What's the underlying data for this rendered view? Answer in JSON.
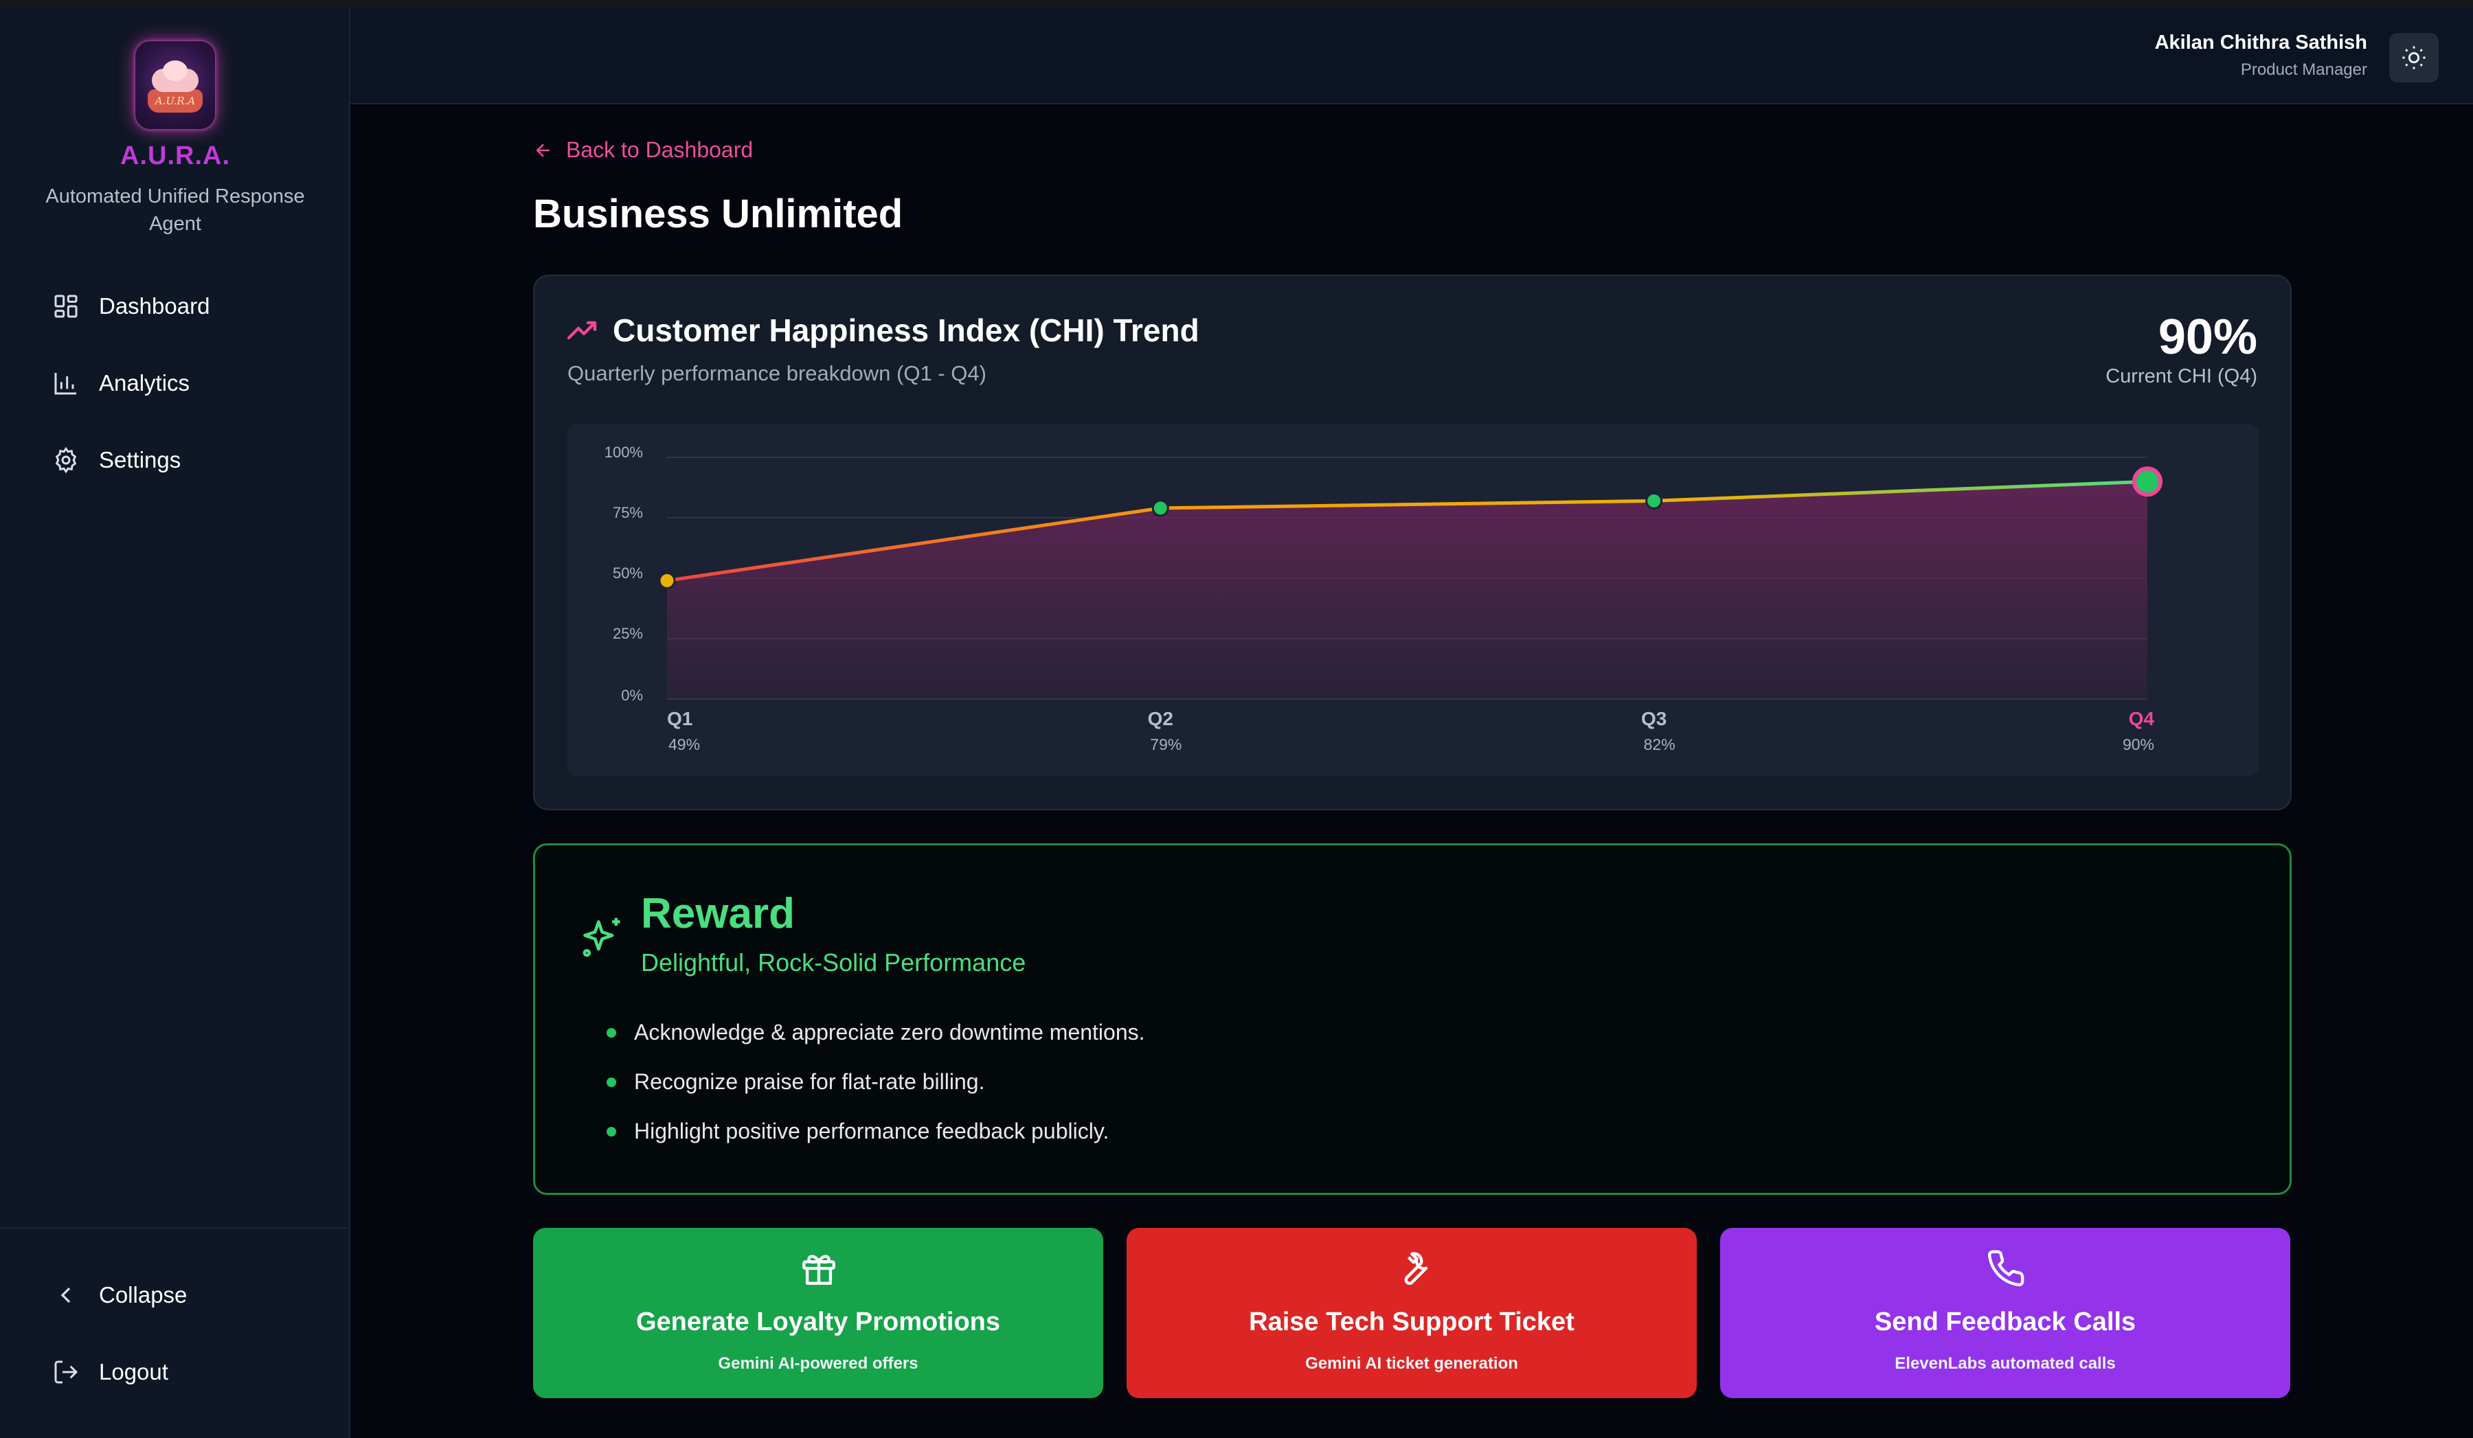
{
  "brand": {
    "name": "A.U.R.A.",
    "subtitle": "Automated Unified Response Agent",
    "logo_text": "A.U.R.A"
  },
  "nav": {
    "items": [
      {
        "label": "Dashboard",
        "icon": "dashboard-grid-icon"
      },
      {
        "label": "Analytics",
        "icon": "bar-chart-icon"
      },
      {
        "label": "Settings",
        "icon": "gear-icon"
      }
    ],
    "collapse_label": "Collapse",
    "logout_label": "Logout"
  },
  "header": {
    "user_name": "Akilan Chithra Sathish",
    "user_role": "Product Manager",
    "theme_icon": "sun-icon"
  },
  "main": {
    "back_label": "Back to Dashboard",
    "page_title": "Business Unlimited"
  },
  "chi_card": {
    "title": "Customer Happiness Index (CHI) Trend",
    "subtitle": "Quarterly performance breakdown (Q1 - Q4)",
    "current_value": "90%",
    "current_label": "Current CHI (Q4)"
  },
  "chart_data": {
    "type": "area",
    "categories": [
      "Q1",
      "Q2",
      "Q3",
      "Q4"
    ],
    "values": [
      49,
      79,
      82,
      90
    ],
    "value_labels": [
      "49%",
      "79%",
      "82%",
      "90%"
    ],
    "y_ticks": [
      "0%",
      "25%",
      "50%",
      "75%",
      "100%"
    ],
    "ylim": [
      0,
      100
    ],
    "grid": true,
    "highlight_category": "Q4",
    "colors": {
      "low": "#eab308",
      "good": "#22c55e",
      "highlight": "#ec4899",
      "area": "#6b2558"
    }
  },
  "reward": {
    "title": "Reward",
    "subtitle": "Delightful, Rock-Solid Performance",
    "items": [
      "Acknowledge & appreciate zero downtime mentions.",
      "Recognize praise for flat-rate billing.",
      "Highlight positive performance feedback publicly."
    ]
  },
  "actions": [
    {
      "title": "Generate Loyalty Promotions",
      "subtitle": "Gemini AI-powered offers",
      "icon": "gift-icon",
      "color": "#16a34a"
    },
    {
      "title": "Raise Tech Support Ticket",
      "subtitle": "Gemini AI ticket generation",
      "icon": "wrench-icon",
      "color": "#dc2626"
    },
    {
      "title": "Send Feedback Calls",
      "subtitle": "ElevenLabs automated calls",
      "icon": "phone-icon",
      "color": "#9333ea"
    }
  ]
}
